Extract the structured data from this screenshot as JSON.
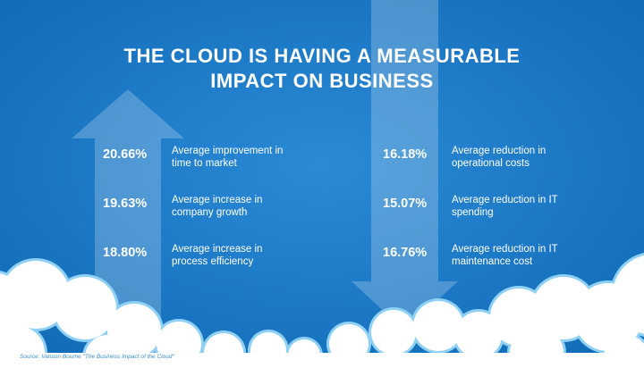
{
  "title": [
    "THE CLOUD IS HAVING A MEASURABLE",
    "IMPACT ON BUSINESS"
  ],
  "increases": [
    {
      "value": "20.66%",
      "label": [
        "Average improvement in",
        "time to market"
      ]
    },
    {
      "value": "19.63%",
      "label": [
        "Average increase in",
        "company growth"
      ]
    },
    {
      "value": "18.80%",
      "label": [
        "Average increase in",
        "process efficiency"
      ]
    }
  ],
  "reductions": [
    {
      "value": "16.18%",
      "label": [
        "Average reduction in",
        "operational costs"
      ]
    },
    {
      "value": "15.07%",
      "label": [
        "Average reduction in IT",
        "spending"
      ]
    },
    {
      "value": "16.76%",
      "label": [
        "Average reduction in IT",
        "maintenance cost"
      ]
    }
  ],
  "source": "Source: Vanson Bourne \"The Business Impact of the Cloud\""
}
